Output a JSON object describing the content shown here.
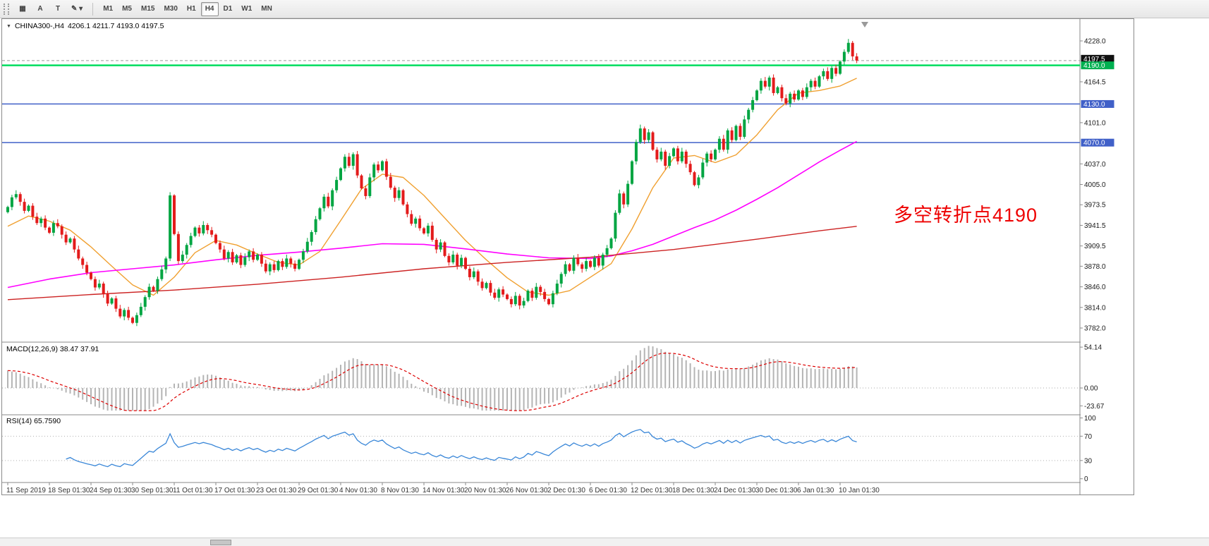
{
  "toolbar": {
    "tools": [
      {
        "name": "symbols-tool",
        "glyph": "▦"
      },
      {
        "name": "text-a-tool",
        "glyph": "A"
      },
      {
        "name": "text-t-tool",
        "glyph": "T"
      },
      {
        "name": "draw-tool",
        "glyph": "✎",
        "chevron": "▾"
      }
    ],
    "timeframes": [
      "M1",
      "M5",
      "M15",
      "M30",
      "H1",
      "H4",
      "D1",
      "W1",
      "MN"
    ],
    "active_timeframe": "H4"
  },
  "chart": {
    "legend_symbol": "CHINA300-,H4",
    "legend_ohlc": "4206.1 4211.7 4193.0 4197.5",
    "annotation": {
      "text": "多空转折点4190",
      "color": "#ee0000"
    },
    "price_axis_labels": [
      4228.0,
      4164.5,
      4101.0,
      4037.0,
      4005.0,
      3973.5,
      3941.5,
      3909.5,
      3878.0,
      3846.0,
      3814.0,
      3782.0
    ],
    "price_tags": [
      {
        "label": "4197.5",
        "price": 4197.5,
        "bg": "#111111",
        "name": "price-tag-bid"
      },
      {
        "label": "4190.0",
        "price": 4190.0,
        "bg": "#00b050",
        "name": "price-tag-4190"
      },
      {
        "label": "4130.0",
        "price": 4130.0,
        "bg": "#4060c8",
        "name": "price-tag-4130"
      },
      {
        "label": "4070.0",
        "price": 4070.0,
        "bg": "#4060c8",
        "name": "price-tag-4070"
      }
    ],
    "hlines": [
      {
        "price": 4197.5,
        "color": "#999999",
        "width": 1,
        "dash": "4,3",
        "name": "bid-price-line"
      },
      {
        "price": 4190.0,
        "color": "#00dd5f",
        "width": 2.5,
        "dash": "",
        "name": "green-hline-4190"
      },
      {
        "price": 4130.0,
        "color": "#4060c8",
        "width": 1.5,
        "dash": "",
        "name": "blue-hline-4130"
      },
      {
        "price": 4070.0,
        "color": "#4060c8",
        "width": 1.5,
        "dash": "",
        "name": "blue-hline-4070"
      }
    ]
  },
  "macd_panel": {
    "label": "MACD(12,26,9) 38.47 37.91",
    "axis": [
      {
        "label": "54.14",
        "value": 54.14
      },
      {
        "label": "0.00",
        "value": 0
      },
      {
        "label": "-23.67",
        "value": -23.67
      }
    ]
  },
  "rsi_panel": {
    "label": "RSI(14) 65.7590",
    "axis": [
      {
        "label": "100",
        "value": 100
      },
      {
        "label": "70",
        "value": 70
      },
      {
        "label": "30",
        "value": 30
      },
      {
        "label": "0",
        "value": 0
      }
    ],
    "levels": [
      70,
      30
    ]
  },
  "time_axis": {
    "labels": [
      "11 Sep 2019",
      "18 Sep 01:30",
      "24 Sep 01:30",
      "30 Sep 01:30",
      "11 Oct 01:30",
      "17 Oct 01:30",
      "23 Oct 01:30",
      "29 Oct 01:30",
      "4 Nov 01:30",
      "8 Nov 01:30",
      "14 Nov 01:30",
      "20 Nov 01:30",
      "26 Nov 01:30",
      "2 Dec 01:30",
      "6 Dec 01:30",
      "12 Dec 01:30",
      "18 Dec 01:30",
      "24 Dec 01:30",
      "30 Dec 01:30",
      "6 Jan 01:30",
      "10 Jan 01:30"
    ]
  },
  "chart_data": {
    "type": "candlestick",
    "symbol": "CHINA300-",
    "period": "H4",
    "title": "CHINA300-,H4 4206.1 4211.7 4193.0 4197.5",
    "ylim": [
      3761,
      4260
    ],
    "last_ohlc": {
      "open": 4206.1,
      "high": 4211.7,
      "low": 4193.0,
      "close": 4197.5
    },
    "up_color": "#00a542",
    "down_color": "#e31b1b",
    "bars_per_label": 10,
    "closes": [
      3970,
      3985,
      3990,
      3978,
      3964,
      3972,
      3955,
      3945,
      3952,
      3938,
      3930,
      3945,
      3940,
      3927,
      3915,
      3921,
      3904,
      3890,
      3880,
      3868,
      3858,
      3845,
      3851,
      3835,
      3820,
      3828,
      3812,
      3800,
      3810,
      3798,
      3790,
      3802,
      3815,
      3830,
      3846,
      3840,
      3858,
      3873,
      3890,
      3988,
      3928,
      3886,
      3896,
      3911,
      3925,
      3938,
      3929,
      3942,
      3934,
      3927,
      3914,
      3904,
      3890,
      3900,
      3884,
      3895,
      3880,
      3892,
      3901,
      3888,
      3896,
      3882,
      3870,
      3881,
      3872,
      3886,
      3877,
      3890,
      3882,
      3874,
      3888,
      3901,
      3916,
      3931,
      3951,
      3968,
      3986,
      3971,
      3996,
      4012,
      4030,
      4048,
      4034,
      4052,
      4019,
      3999,
      3987,
      4016,
      4036,
      4027,
      4041,
      4017,
      4000,
      3984,
      3996,
      3974,
      3959,
      3944,
      3952,
      3937,
      3929,
      3941,
      3919,
      3904,
      3915,
      3894,
      3884,
      3896,
      3879,
      3891,
      3874,
      3861,
      3870,
      3854,
      3844,
      3852,
      3837,
      3829,
      3842,
      3834,
      3827,
      3819,
      3832,
      3817,
      3824,
      3840,
      3829,
      3846,
      3838,
      3827,
      3819,
      3836,
      3851,
      3866,
      3881,
      3871,
      3891,
      3881,
      3874,
      3886,
      3877,
      3891,
      3879,
      3896,
      3906,
      3921,
      3961,
      3991,
      3974,
      4006,
      4041,
      4071,
      4092,
      4074,
      4086,
      4059,
      4044,
      4056,
      4034,
      4049,
      4061,
      4041,
      4056,
      4037,
      4024,
      4004,
      4016,
      4039,
      4053,
      4044,
      4059,
      4076,
      4059,
      4089,
      4074,
      4096,
      4079,
      4106,
      4121,
      4136,
      4151,
      4166,
      4157,
      4171,
      4147,
      4156,
      4139,
      4131,
      4146,
      4137,
      4151,
      4141,
      4156,
      4166,
      4157,
      4173,
      4181,
      4169,
      4186,
      4177,
      4196,
      4211,
      4225,
      4204,
      4197.5
    ],
    "ma_lines": [
      {
        "name": "ma-fast-line",
        "color": "#f0a030",
        "width": 1.4,
        "points": [
          [
            0,
            3940
          ],
          [
            5,
            3956
          ],
          [
            10,
            3948
          ],
          [
            15,
            3934
          ],
          [
            20,
            3908
          ],
          [
            25,
            3878
          ],
          [
            30,
            3849
          ],
          [
            35,
            3833
          ],
          [
            40,
            3861
          ],
          [
            45,
            3899
          ],
          [
            50,
            3918
          ],
          [
            55,
            3911
          ],
          [
            60,
            3897
          ],
          [
            65,
            3884
          ],
          [
            70,
            3880
          ],
          [
            75,
            3901
          ],
          [
            80,
            3949
          ],
          [
            85,
            3998
          ],
          [
            90,
            4021
          ],
          [
            95,
            4016
          ],
          [
            100,
            3988
          ],
          [
            105,
            3953
          ],
          [
            110,
            3918
          ],
          [
            115,
            3888
          ],
          [
            120,
            3860
          ],
          [
            125,
            3838
          ],
          [
            130,
            3833
          ],
          [
            135,
            3840
          ],
          [
            140,
            3861
          ],
          [
            145,
            3882
          ],
          [
            150,
            3936
          ],
          [
            155,
            4000
          ],
          [
            160,
            4046
          ],
          [
            165,
            4050
          ],
          [
            170,
            4039
          ],
          [
            175,
            4051
          ],
          [
            180,
            4082
          ],
          [
            185,
            4121
          ],
          [
            190,
            4147
          ],
          [
            195,
            4151
          ],
          [
            200,
            4158
          ],
          [
            204,
            4170
          ]
        ]
      },
      {
        "name": "ma-mid-line",
        "color": "#ff00ff",
        "width": 1.6,
        "points": [
          [
            0,
            3845
          ],
          [
            10,
            3858
          ],
          [
            20,
            3868
          ],
          [
            30,
            3874
          ],
          [
            40,
            3880
          ],
          [
            50,
            3888
          ],
          [
            60,
            3895
          ],
          [
            70,
            3900
          ],
          [
            80,
            3906
          ],
          [
            90,
            3913
          ],
          [
            100,
            3912
          ],
          [
            110,
            3905
          ],
          [
            120,
            3897
          ],
          [
            130,
            3891
          ],
          [
            140,
            3890
          ],
          [
            145,
            3894
          ],
          [
            150,
            3902
          ],
          [
            155,
            3912
          ],
          [
            160,
            3925
          ],
          [
            165,
            3938
          ],
          [
            170,
            3950
          ],
          [
            175,
            3965
          ],
          [
            180,
            3982
          ],
          [
            185,
            4000
          ],
          [
            190,
            4020
          ],
          [
            195,
            4040
          ],
          [
            200,
            4058
          ],
          [
            204,
            4072
          ]
        ]
      },
      {
        "name": "ma-slow-line",
        "color": "#cc2222",
        "width": 1.4,
        "points": [
          [
            0,
            3826
          ],
          [
            20,
            3834
          ],
          [
            40,
            3841
          ],
          [
            60,
            3850
          ],
          [
            80,
            3861
          ],
          [
            100,
            3874
          ],
          [
            120,
            3884
          ],
          [
            140,
            3892
          ],
          [
            160,
            3904
          ],
          [
            180,
            3920
          ],
          [
            195,
            3933
          ],
          [
            204,
            3940
          ]
        ]
      }
    ],
    "indicators": {
      "macd": {
        "params": [
          12,
          26,
          9
        ],
        "display": "38.47 37.91",
        "histogram_color": "#b4b4b4",
        "signal_color": "#dd0000"
      },
      "rsi": {
        "params": [
          14
        ],
        "display": "65.7590",
        "line_color": "#3a87d8",
        "levels": [
          70,
          30
        ]
      }
    }
  },
  "scrollbar": {
    "present": true
  }
}
